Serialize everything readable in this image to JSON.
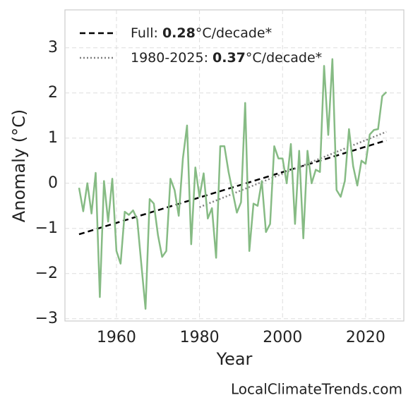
{
  "chart_data": {
    "type": "line",
    "xlabel": "Year",
    "ylabel": "Anomaly (°C)",
    "footer": "LocalClimateTrends.com",
    "xlim": [
      1947.6,
      2029.2
    ],
    "ylim": [
      -3.05,
      3.84
    ],
    "xticks": [
      1960,
      1980,
      2000,
      2020
    ],
    "yticks": [
      {
        "value": -3,
        "label": "−3"
      },
      {
        "value": -2,
        "label": "−2"
      },
      {
        "value": -1,
        "label": "−1"
      },
      0,
      1,
      2,
      3
    ],
    "grid": true,
    "x": [
      1951,
      1952,
      1953,
      1954,
      1955,
      1956,
      1957,
      1958,
      1959,
      1960,
      1961,
      1962,
      1963,
      1964,
      1965,
      1966,
      1967,
      1968,
      1969,
      1970,
      1971,
      1972,
      1973,
      1974,
      1975,
      1976,
      1977,
      1978,
      1979,
      1980,
      1981,
      1982,
      1983,
      1984,
      1985,
      1986,
      1987,
      1988,
      1989,
      1990,
      1991,
      1992,
      1993,
      1994,
      1995,
      1996,
      1997,
      1998,
      1999,
      2000,
      2001,
      2002,
      2003,
      2004,
      2005,
      2006,
      2007,
      2008,
      2009,
      2010,
      2011,
      2012,
      2013,
      2014,
      2015,
      2016,
      2017,
      2018,
      2019,
      2020,
      2021,
      2022,
      2023,
      2024,
      2025
    ],
    "values": [
      -0.1,
      -0.62,
      0.0,
      -0.67,
      0.23,
      -2.52,
      0.05,
      -0.85,
      0.1,
      -1.5,
      -1.78,
      -0.63,
      -0.7,
      -0.6,
      -0.8,
      -1.8,
      -2.78,
      -0.35,
      -0.45,
      -1.15,
      -1.63,
      -1.5,
      0.1,
      -0.15,
      -0.72,
      0.55,
      1.28,
      -1.35,
      0.35,
      -0.3,
      0.22,
      -0.78,
      -0.55,
      -1.65,
      0.82,
      0.82,
      0.25,
      -0.2,
      -0.65,
      -0.42,
      1.78,
      -1.5,
      -0.45,
      -0.5,
      0.05,
      -1.08,
      -0.9,
      0.82,
      0.55,
      0.55,
      0.0,
      0.87,
      -0.9,
      0.72,
      -1.22,
      0.72,
      0.0,
      0.3,
      0.25,
      2.6,
      1.07,
      2.75,
      -0.15,
      -0.3,
      0.05,
      1.2,
      0.38,
      -0.05,
      0.5,
      0.43,
      1.08,
      1.18,
      1.2,
      1.93,
      2.02
    ],
    "color": "#86bb84",
    "trends": [
      {
        "label": [
          "Full: ",
          "0.28",
          "°C/decade*"
        ],
        "color": "#000000",
        "dash": "8,5",
        "x": [
          1951,
          2025
        ],
        "values": [
          -1.13,
          0.95
        ]
      },
      {
        "label": [
          "1980-2025: ",
          "0.37",
          "°C/decade*"
        ],
        "color": "#808080",
        "dash": "2,3",
        "x": [
          1980,
          2025
        ],
        "values": [
          -0.53,
          1.14
        ]
      }
    ]
  }
}
